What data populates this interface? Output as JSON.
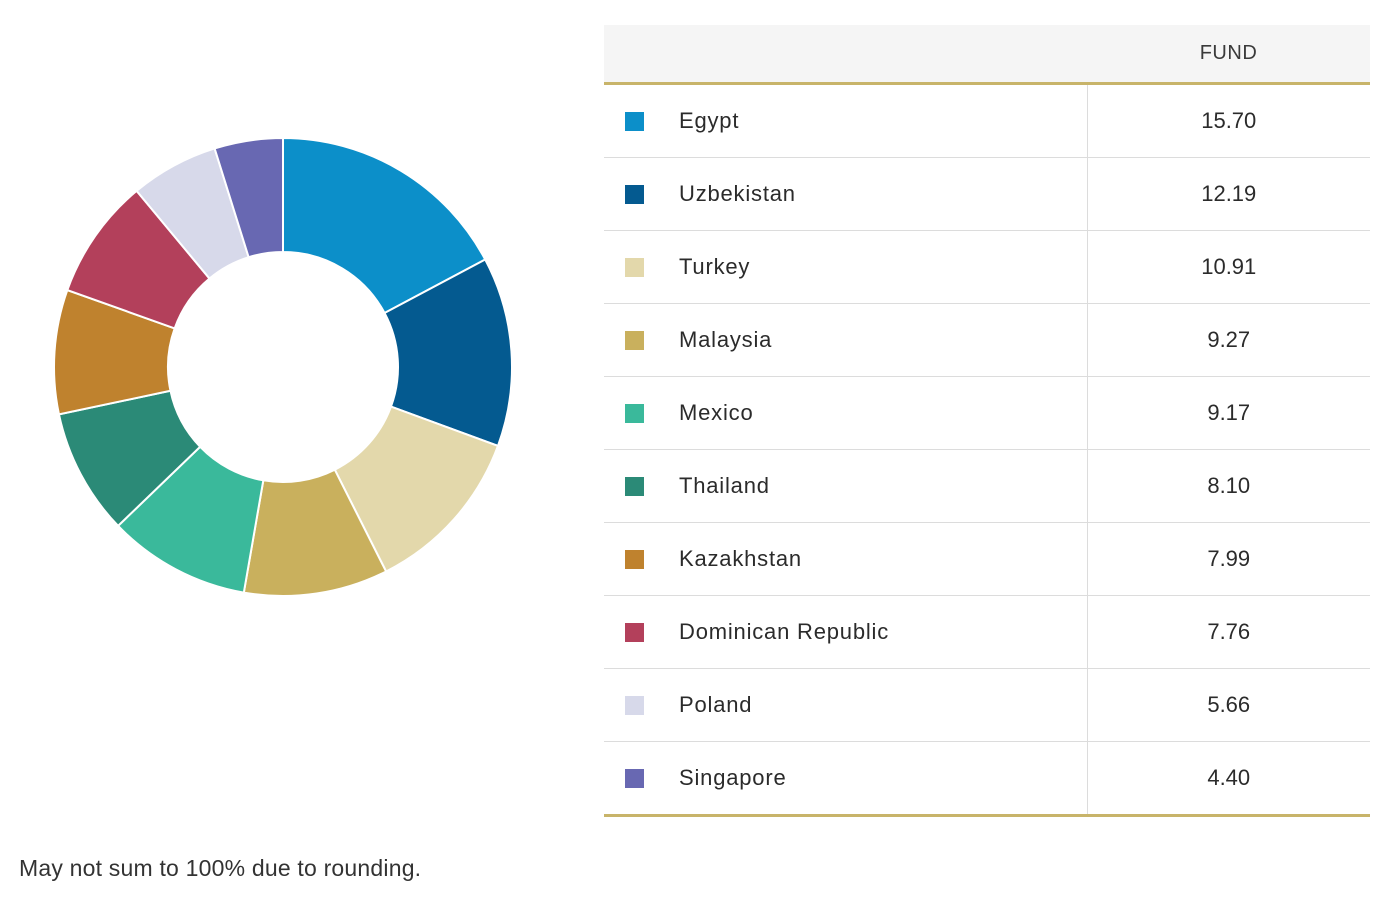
{
  "chart_data": {
    "type": "pie",
    "variant": "donut",
    "categories": [
      "Egypt",
      "Uzbekistan",
      "Turkey",
      "Malaysia",
      "Mexico",
      "Thailand",
      "Kazakhstan",
      "Dominican Republic",
      "Poland",
      "Singapore"
    ],
    "values": [
      15.7,
      12.19,
      10.91,
      9.27,
      9.17,
      8.1,
      7.99,
      7.76,
      5.66,
      4.4
    ],
    "colors": [
      "#0c8fc9",
      "#045a90",
      "#e3d8ab",
      "#c9b05d",
      "#3ab99b",
      "#2b8a77",
      "#bf822e",
      "#b3405b",
      "#d7d9ea",
      "#6868b2"
    ]
  },
  "table": {
    "header": {
      "name": "",
      "fund": "FUND"
    },
    "rows": [
      {
        "name": "Egypt",
        "value": "15.70",
        "color": "#0c8fc9"
      },
      {
        "name": "Uzbekistan",
        "value": "12.19",
        "color": "#045a90"
      },
      {
        "name": "Turkey",
        "value": "10.91",
        "color": "#e3d8ab"
      },
      {
        "name": "Malaysia",
        "value": "9.27",
        "color": "#c9b05d"
      },
      {
        "name": "Mexico",
        "value": "9.17",
        "color": "#3ab99b"
      },
      {
        "name": "Thailand",
        "value": "8.10",
        "color": "#2b8a77"
      },
      {
        "name": "Kazakhstan",
        "value": "7.99",
        "color": "#bf822e"
      },
      {
        "name": "Dominican Republic",
        "value": "7.76",
        "color": "#b3405b"
      },
      {
        "name": "Poland",
        "value": "5.66",
        "color": "#d7d9ea"
      },
      {
        "name": "Singapore",
        "value": "4.40",
        "color": "#6868b2"
      }
    ]
  },
  "footnote": "May not sum to 100% due to rounding."
}
